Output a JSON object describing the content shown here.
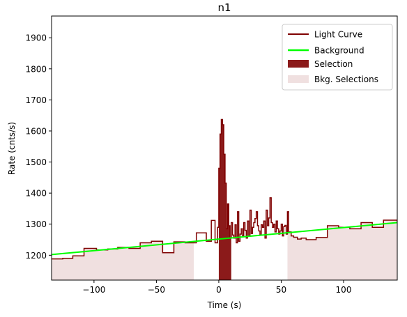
{
  "chart_data": {
    "type": "line",
    "title": "n1",
    "xlabel": "Time (s)",
    "ylabel": "Rate (cnts/s)",
    "xlim": [
      -134,
      143
    ],
    "ylim": [
      1120,
      1970
    ],
    "xticks": [
      -100,
      -50,
      0,
      50,
      100
    ],
    "yticks": [
      1200,
      1300,
      1400,
      1500,
      1600,
      1700,
      1800,
      1900
    ],
    "legend_position": "top-right",
    "grid": false,
    "series": [
      {
        "name": "Light Curve",
        "kind": "step",
        "color": "#7f0000",
        "x": [
          -134,
          -125,
          -117,
          -108,
          -98,
          -89,
          -81,
          -72,
          -63,
          -54,
          -45,
          -36,
          -27,
          -18,
          -10,
          -6,
          -3,
          -1,
          0,
          1,
          2,
          3,
          4,
          5,
          6,
          7,
          8,
          9,
          10,
          11,
          12,
          13,
          14,
          15,
          16,
          17,
          18,
          19,
          20,
          21,
          22,
          23,
          24,
          25,
          26,
          27,
          28,
          29,
          30,
          31,
          32,
          33,
          34,
          35,
          36,
          37,
          38,
          39,
          40,
          41,
          42,
          43,
          44,
          45,
          46,
          47,
          48,
          49,
          50,
          51,
          52,
          53,
          54,
          55,
          56,
          58,
          60,
          63,
          66,
          70,
          78,
          87,
          96,
          105,
          114,
          123,
          132,
          143
        ],
        "y": [
          1188,
          1190,
          1198,
          1222,
          1217,
          1220,
          1225,
          1222,
          1240,
          1245,
          1208,
          1243,
          1240,
          1272,
          1245,
          1312,
          1240,
          1290,
          1480,
          1590,
          1637,
          1620,
          1525,
          1432,
          1285,
          1365,
          1295,
          1255,
          1305,
          1265,
          1255,
          1298,
          1240,
          1340,
          1245,
          1268,
          1285,
          1262,
          1305,
          1280,
          1255,
          1310,
          1262,
          1345,
          1270,
          1290,
          1305,
          1318,
          1340,
          1295,
          1278,
          1265,
          1298,
          1290,
          1310,
          1255,
          1345,
          1295,
          1320,
          1385,
          1305,
          1290,
          1300,
          1275,
          1310,
          1285,
          1268,
          1278,
          1300,
          1262,
          1292,
          1296,
          1268,
          1340,
          1275,
          1262,
          1258,
          1252,
          1255,
          1250,
          1257,
          1295,
          1290,
          1285,
          1305,
          1290,
          1313,
          1305
        ]
      },
      {
        "name": "Background",
        "kind": "line",
        "color": "#00ff00",
        "x": [
          -134,
          143
        ],
        "y": [
          1202,
          1305
        ]
      }
    ],
    "selection": {
      "name": "Selection",
      "color": "#8b1a1a",
      "x_range": [
        0,
        10
      ]
    },
    "bkg_selections": {
      "name": "Bkg. Selections",
      "color": "#f0e0e0",
      "ranges": [
        [
          -134,
          -20
        ],
        [
          55,
          143
        ]
      ]
    }
  }
}
